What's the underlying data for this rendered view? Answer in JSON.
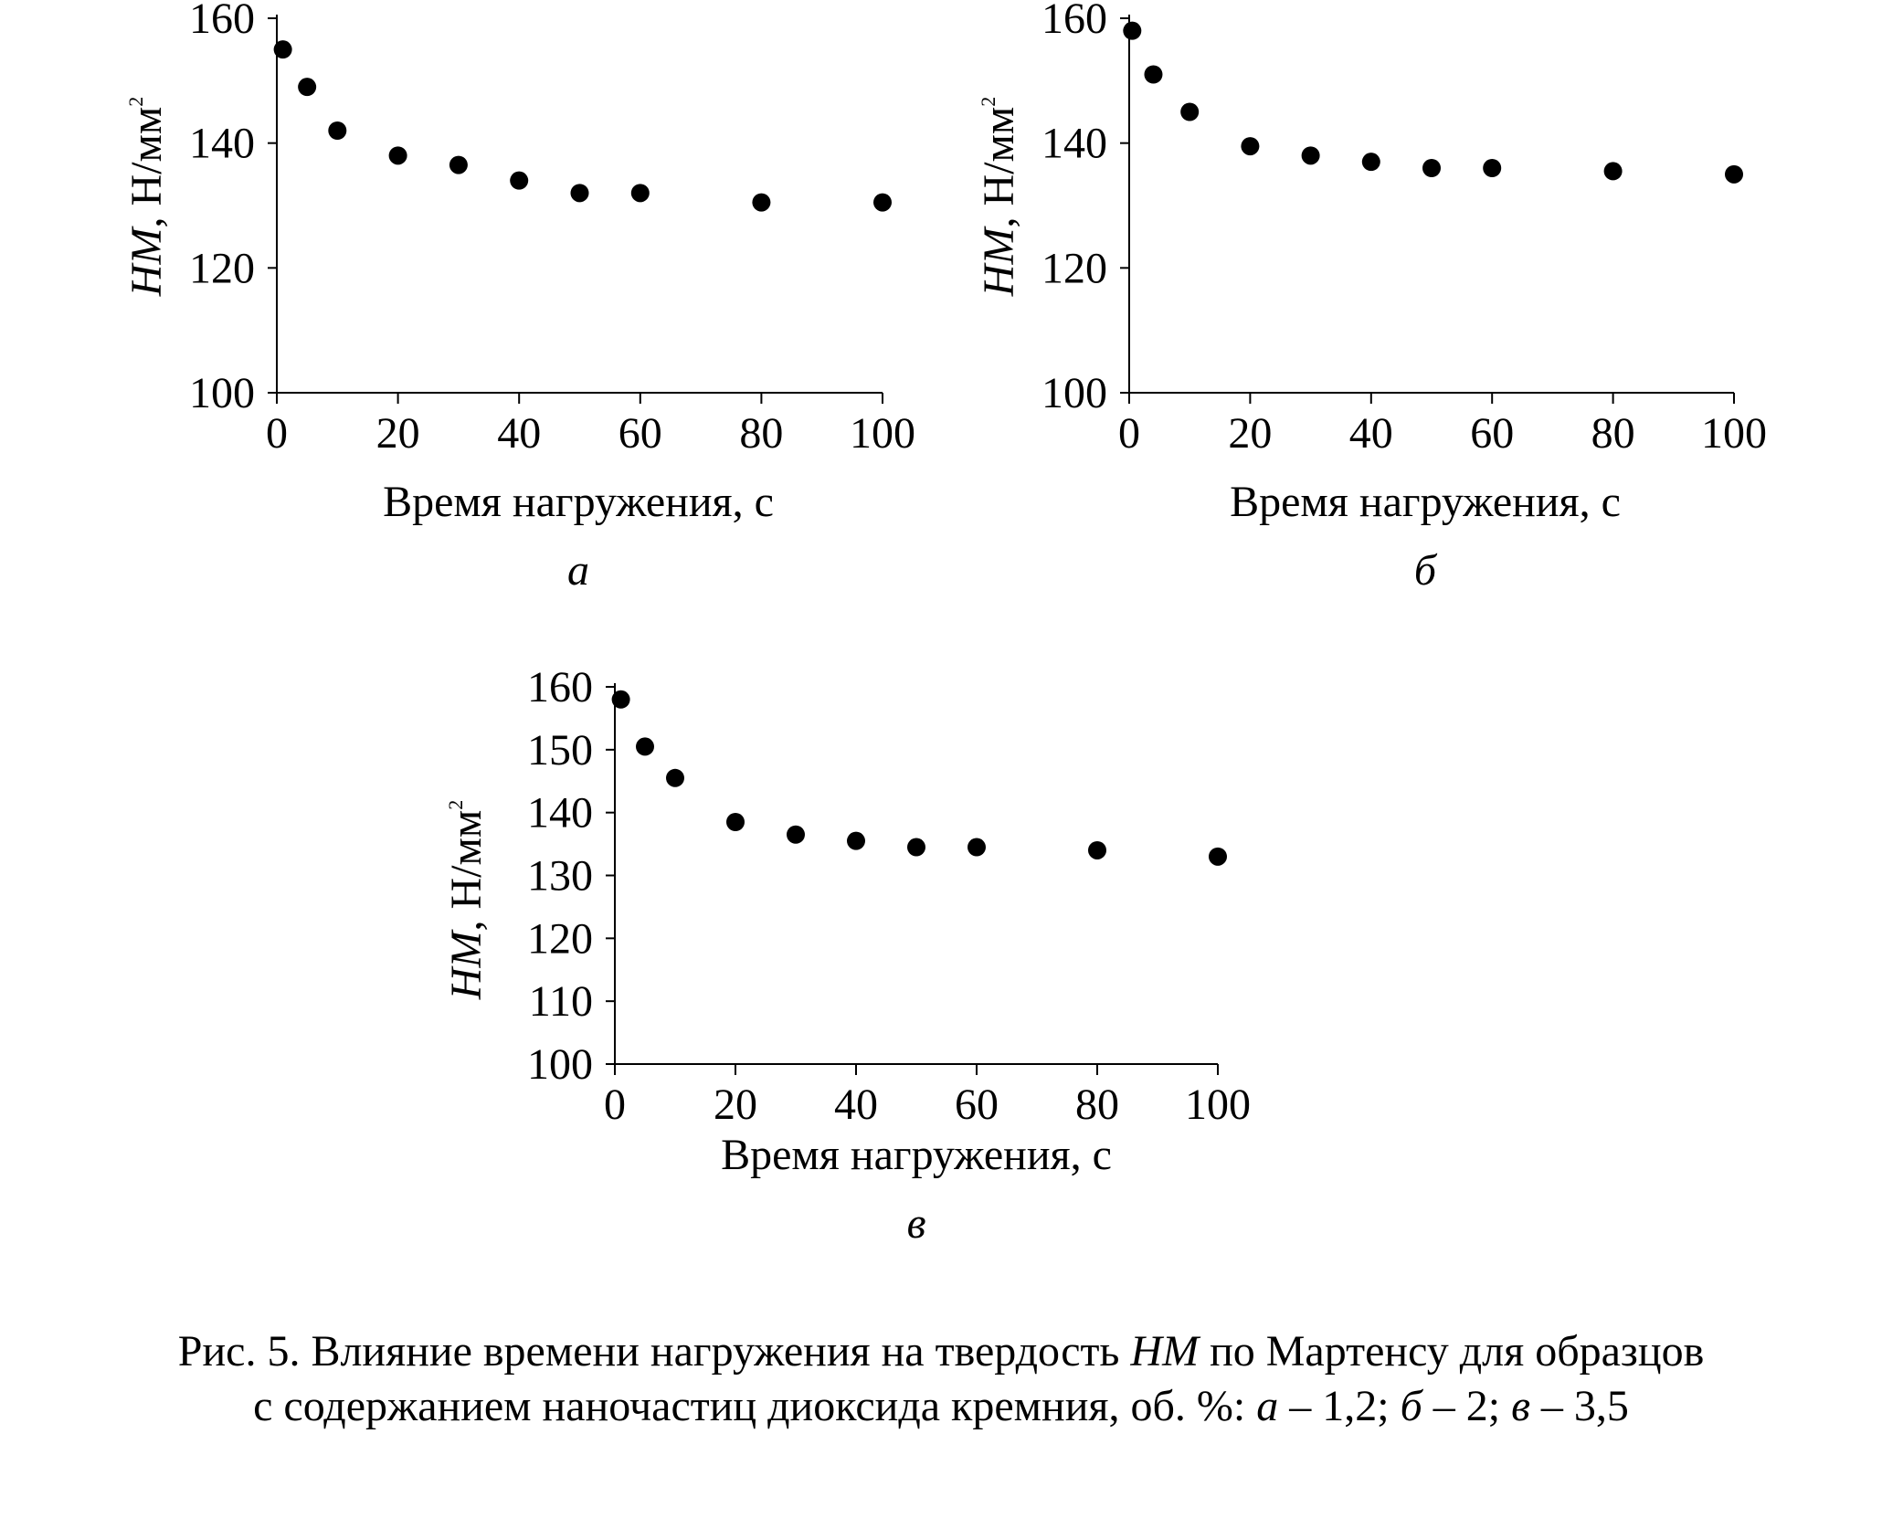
{
  "chart_data": [
    {
      "type": "scatter",
      "panel_label": "а",
      "xlabel": "Время нагружения, с",
      "ylabel": {
        "var": "HM",
        "unit": ", Н/мм",
        "sup": "2"
      },
      "xlim": [
        0,
        100
      ],
      "ylim": [
        100,
        160
      ],
      "xticks": [
        0,
        20,
        40,
        60,
        80,
        100
      ],
      "yticks": [
        100,
        120,
        140,
        160
      ],
      "x": [
        1,
        5,
        10,
        20,
        30,
        40,
        50,
        60,
        80,
        100
      ],
      "y": [
        155,
        149,
        142,
        138,
        136.5,
        134,
        132,
        132,
        130.5,
        130.5
      ]
    },
    {
      "type": "scatter",
      "panel_label": "б",
      "xlabel": "Время нагружения, с",
      "ylabel": {
        "var": "HM",
        "unit": ", Н/мм",
        "sup": "2"
      },
      "xlim": [
        0,
        100
      ],
      "ylim": [
        100,
        160
      ],
      "xticks": [
        0,
        20,
        40,
        60,
        80,
        100
      ],
      "yticks": [
        100,
        120,
        140,
        160
      ],
      "x": [
        0.5,
        4,
        10,
        20,
        30,
        40,
        50,
        60,
        80,
        100
      ],
      "y": [
        158,
        151,
        145,
        139.5,
        138,
        137,
        136,
        136,
        135.5,
        135
      ]
    },
    {
      "type": "scatter",
      "panel_label": "в",
      "xlabel": "Время нагружения, с",
      "ylabel": {
        "var": "HM",
        "unit": ", Н/мм",
        "sup": "2"
      },
      "xlim": [
        0,
        100
      ],
      "ylim": [
        100,
        160
      ],
      "xticks": [
        0,
        20,
        40,
        60,
        80,
        100
      ],
      "yticks": [
        100,
        110,
        120,
        130,
        140,
        150,
        160
      ],
      "x": [
        1,
        5,
        10,
        20,
        30,
        40,
        50,
        60,
        80,
        100
      ],
      "y": [
        158,
        150.5,
        145.5,
        138.5,
        136.5,
        135.5,
        134.5,
        134.5,
        134,
        133
      ]
    }
  ],
  "caption": {
    "line1_a": "Рис. 5. Влияние времени нагружения на твердость ",
    "line1_it": "HM",
    "line1_b": " по Мартенсу для образцов",
    "line2_a": "с содержанием наночастиц диоксида кремния, об. %: ",
    "line2_it1": "а",
    "line2_b": " – 1,2; ",
    "line2_it2": "б",
    "line2_c": " – 2; ",
    "line2_it3": "в",
    "line2_d": " – 3,5"
  },
  "colors": {
    "marker": "#000000",
    "axis": "#000000",
    "background": "#ffffff"
  }
}
